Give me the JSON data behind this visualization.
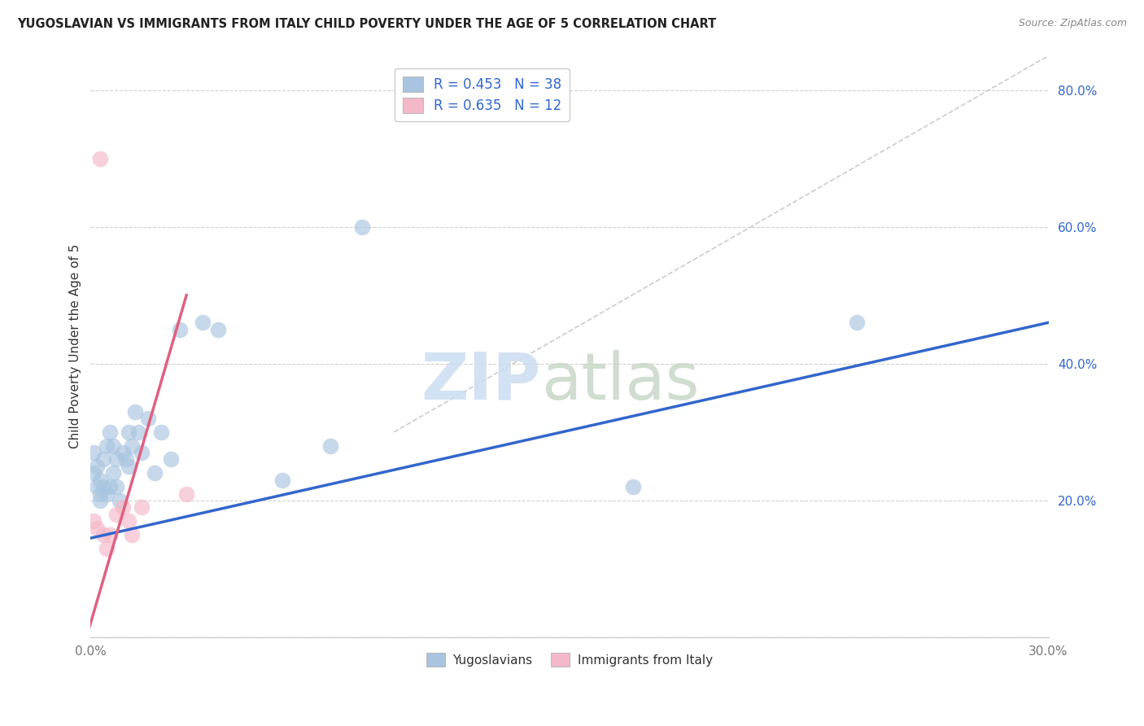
{
  "title": "YUGOSLAVIAN VS IMMIGRANTS FROM ITALY CHILD POVERTY UNDER THE AGE OF 5 CORRELATION CHART",
  "source": "Source: ZipAtlas.com",
  "ylabel": "Child Poverty Under the Age of 5",
  "xlim": [
    0,
    0.3
  ],
  "ylim": [
    0,
    0.85
  ],
  "xticks": [
    0.0,
    0.05,
    0.1,
    0.15,
    0.2,
    0.25,
    0.3
  ],
  "xticklabels": [
    "0.0%",
    "",
    "",
    "",
    "",
    "",
    "30.0%"
  ],
  "yticks": [
    0.0,
    0.2,
    0.4,
    0.6,
    0.8
  ],
  "yticklabels": [
    "",
    "20.0%",
    "40.0%",
    "60.0%",
    "80.0%"
  ],
  "legend1_label": "R = 0.453   N = 38",
  "legend2_label": "R = 0.635   N = 12",
  "legend_bottom1": "Yugoslavians",
  "legend_bottom2": "Immigrants from Italy",
  "blue_color": "#a8c4e0",
  "pink_color": "#f4b8c8",
  "blue_line_color": "#3366cc",
  "pink_line_color": "#e06080",
  "blue_scatter_x": [
    0.001,
    0.001,
    0.002,
    0.002,
    0.003,
    0.003,
    0.003,
    0.004,
    0.004,
    0.005,
    0.005,
    0.006,
    0.006,
    0.007,
    0.007,
    0.008,
    0.008,
    0.009,
    0.01,
    0.011,
    0.012,
    0.012,
    0.013,
    0.014,
    0.015,
    0.016,
    0.018,
    0.02,
    0.022,
    0.025,
    0.028,
    0.035,
    0.04,
    0.06,
    0.075,
    0.085,
    0.17,
    0.24
  ],
  "blue_scatter_y": [
    0.24,
    0.27,
    0.22,
    0.25,
    0.21,
    0.23,
    0.2,
    0.22,
    0.26,
    0.28,
    0.21,
    0.3,
    0.22,
    0.28,
    0.24,
    0.22,
    0.26,
    0.2,
    0.27,
    0.26,
    0.25,
    0.3,
    0.28,
    0.33,
    0.3,
    0.27,
    0.32,
    0.24,
    0.3,
    0.26,
    0.45,
    0.46,
    0.45,
    0.23,
    0.28,
    0.6,
    0.22,
    0.46
  ],
  "pink_scatter_x": [
    0.001,
    0.002,
    0.003,
    0.004,
    0.005,
    0.006,
    0.008,
    0.01,
    0.012,
    0.013,
    0.016,
    0.03
  ],
  "pink_scatter_y": [
    0.17,
    0.16,
    0.7,
    0.15,
    0.13,
    0.15,
    0.18,
    0.19,
    0.17,
    0.15,
    0.19,
    0.21
  ],
  "blue_line_x": [
    0.0,
    0.3
  ],
  "blue_line_y": [
    0.145,
    0.46
  ],
  "pink_line_x": [
    -0.001,
    0.03
  ],
  "pink_line_y": [
    0.005,
    0.5
  ],
  "diag_line_x": [
    0.095,
    0.3
  ],
  "diag_line_y": [
    0.3,
    0.85
  ]
}
